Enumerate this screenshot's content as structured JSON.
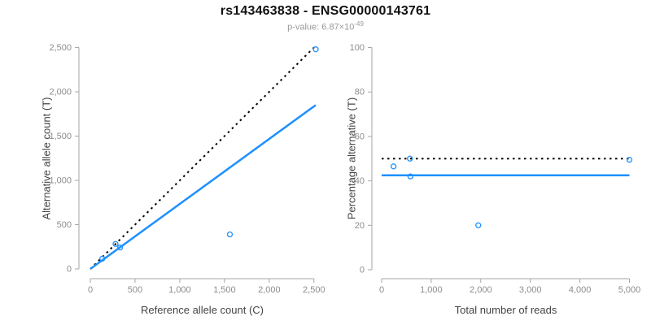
{
  "header": {
    "title": "rs143463838 - ENSG00000143761",
    "pvalue_label": "p-value: 6.87×10",
    "pvalue_exponent": "-49"
  },
  "colors": {
    "series_blue": "#1E90FF",
    "dotted_black": "#000000",
    "axis_line": "#a6a6a6",
    "tick_label": "#8c8c8c",
    "axis_title": "#444444",
    "subtitle": "#999999"
  },
  "chart_data": [
    {
      "type": "scatter",
      "xlabel": "Reference allele count (C)",
      "ylabel": "Alternative allele count (T)",
      "xlim": [
        0,
        2500
      ],
      "ylim": [
        0,
        2500
      ],
      "grid": false,
      "legend": false,
      "xticks": {
        "values": [
          0,
          500,
          1000,
          1500,
          2000,
          2500
        ],
        "labels": [
          "0",
          "500",
          "1,000",
          "1,500",
          "2,000",
          "2,500"
        ]
      },
      "yticks": {
        "values": [
          0,
          500,
          1000,
          1500,
          2000,
          2500
        ],
        "labels": [
          "0",
          "500",
          "1,000",
          "1,500",
          "2,000",
          "2,500"
        ]
      },
      "points": [
        [
          134,
          116
        ],
        [
          282,
          282
        ],
        [
          333,
          242
        ],
        [
          1560,
          390
        ],
        [
          2520,
          2480
        ]
      ],
      "lines": [
        {
          "name": "identity-line",
          "style": "dotted",
          "color": "#000000",
          "x1": 0,
          "y1": 0,
          "x2": 2520,
          "y2": 2520
        },
        {
          "name": "regression-line",
          "style": "solid",
          "color": "#1E90FF",
          "x1": 0,
          "y1": 0,
          "x2": 2520,
          "y2": 1850
        }
      ]
    },
    {
      "type": "scatter",
      "xlabel": "Total number of reads",
      "ylabel": "Percentage alternative (T)",
      "xlim": [
        0,
        5000
      ],
      "ylim": [
        0,
        100
      ],
      "grid": false,
      "legend": false,
      "xticks": {
        "values": [
          0,
          1000,
          2000,
          3000,
          4000,
          5000
        ],
        "labels": [
          "0",
          "1,000",
          "2,000",
          "3,000",
          "4,000",
          "5,000"
        ]
      },
      "yticks": {
        "values": [
          0,
          20,
          40,
          60,
          80,
          100
        ],
        "labels": [
          "0",
          "20",
          "40",
          "60",
          "80",
          "100"
        ]
      },
      "points": [
        [
          240,
          46.5
        ],
        [
          570,
          50
        ],
        [
          580,
          42
        ],
        [
          1950,
          20
        ],
        [
          5000,
          49.5
        ]
      ],
      "lines": [
        {
          "name": "expected-ratio-line",
          "style": "dotted",
          "color": "#000000",
          "x1": 0,
          "y1": 50,
          "x2": 5000,
          "y2": 50
        },
        {
          "name": "observed-ratio-line",
          "style": "solid",
          "color": "#1E90FF",
          "x1": 0,
          "y1": 42.5,
          "x2": 5000,
          "y2": 42.5
        }
      ]
    }
  ]
}
